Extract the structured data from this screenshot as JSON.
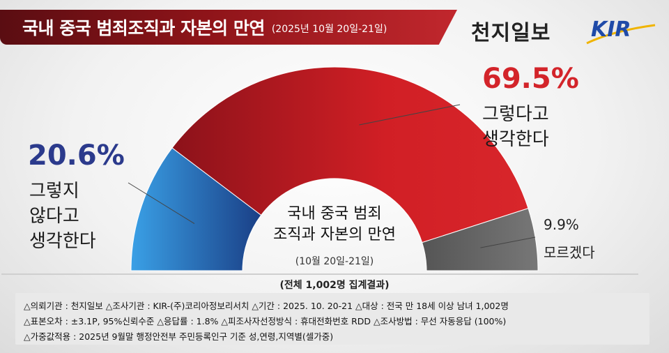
{
  "header": {
    "title": "국내 중국 범죄조직과 자본의 만연",
    "date": "(2025년 10월 20일-21일)",
    "brand": "천지일보",
    "logo_text": "KIR"
  },
  "chart_data": {
    "type": "pie",
    "style": "half-donut",
    "categories": [
      "그렇지 않다고 생각한다",
      "그렇다고 생각한다",
      "모르겠다"
    ],
    "values": [
      20.6,
      69.5,
      9.9
    ],
    "colors": [
      "#2a86c8",
      "#c81e24",
      "#5e5e5e"
    ],
    "labels": {
      "no": {
        "pct": "20.6%",
        "lines": [
          "그렇지",
          "않다고",
          "생각한다"
        ],
        "color": "#2b3a8c"
      },
      "yes": {
        "pct": "69.5%",
        "lines": [
          "그렇다고",
          "생각한다"
        ],
        "color": "#d3242a"
      },
      "unknown": {
        "pct": "9.9%",
        "lines": [
          "모르겠다"
        ]
      }
    },
    "center": {
      "lines": [
        "국내 중국 범죄",
        "조직과 자본의 만연"
      ],
      "date": "(10월 20일-21일)"
    },
    "total": "(전체 1,002명 집계결과)"
  },
  "info": {
    "line1": "△의뢰기관 : 천지일보    △조사기관 : KIR-(주)코리아정보리서치    △기간 : 2025. 10. 20-21  △대상 : 전국 만 18세 이상 남녀 1,002명",
    "line2": "△표본오차 : ±3.1P, 95%신뢰수준   △응답률 : 1.8%   △피조사자선정방식 : 휴대전화번호 RDD    △조사방법 : 무선 자동응답 (100%)",
    "line3": "△가중값적용 : 2025년 9월말 행정안전부 주민등록인구 기준 성,연령,지역별(셀가중)"
  }
}
